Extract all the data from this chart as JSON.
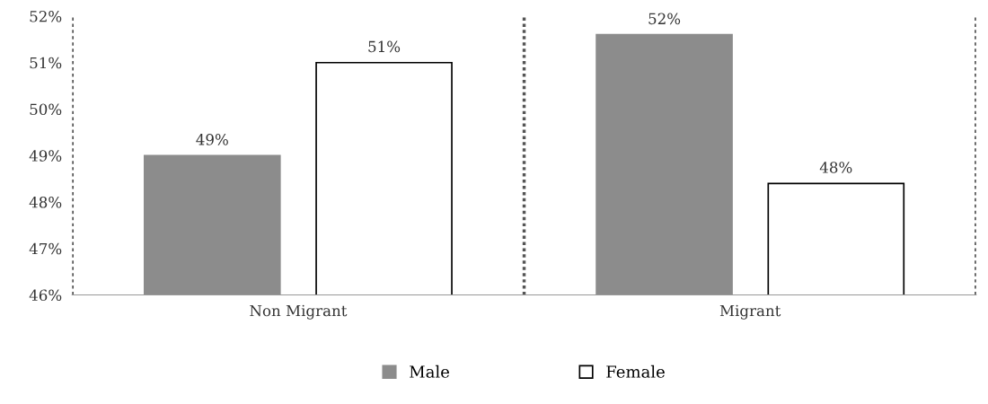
{
  "chart_data": {
    "type": "bar",
    "categories": [
      "Non Migrant",
      "Migrant"
    ],
    "series": [
      {
        "name": "Male",
        "color": "#8c8c8c",
        "values": [
          49.0,
          51.6
        ],
        "value_labels": [
          "49%",
          "52%"
        ]
      },
      {
        "name": "Female",
        "color": "#ffffff",
        "values": [
          51.0,
          48.4
        ],
        "value_labels": [
          "51%",
          "48%"
        ]
      }
    ],
    "ylim": [
      46,
      52
    ],
    "yticks": [
      {
        "value": 46,
        "label": "46%"
      },
      {
        "value": 47,
        "label": "47%"
      },
      {
        "value": 48,
        "label": "48%"
      },
      {
        "value": 49,
        "label": "49%"
      },
      {
        "value": 50,
        "label": "50%"
      },
      {
        "value": 51,
        "label": "51%"
      },
      {
        "value": 52,
        "label": "52%"
      }
    ],
    "grid": "x",
    "legend": "bottom"
  }
}
